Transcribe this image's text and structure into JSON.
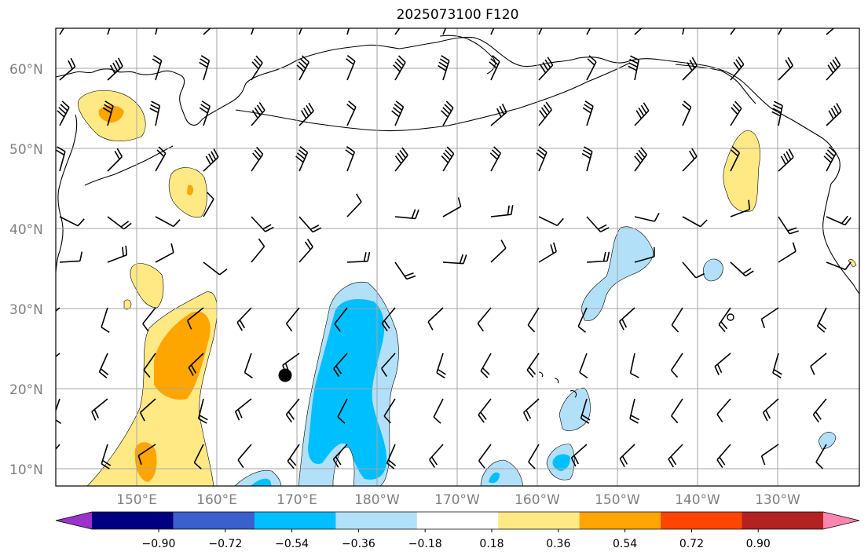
{
  "title": "2025073100 F120",
  "lat_labels": [
    "60°N",
    "50°N",
    "40°N",
    "30°N",
    "20°N",
    "10°N"
  ],
  "lon_labels": [
    "150°E",
    "160°E",
    "170°E",
    "180°W",
    "170°W",
    "160°W",
    "150°W",
    "140°W",
    "130°W"
  ],
  "colorbar": {
    "colors": [
      "#9933cc",
      "#000080",
      "#3b5fcd",
      "#00bfff",
      "#b2e0f8",
      "#ffffff",
      "#ffe985",
      "#ffa500",
      "#ff4500",
      "#b22222",
      "#ff85b0"
    ],
    "tick_labels": [
      "−0.90",
      "−0.72",
      "−0.54",
      "−0.36",
      "−0.18",
      "0.18",
      "0.36",
      "0.54",
      "0.72",
      "0.90"
    ]
  },
  "legend_colors": {
    "positive_light": "#ffe985",
    "positive_mid": "#ffa500",
    "negative_light": "#b2e0f8",
    "negative_mid": "#00bfff"
  },
  "marker": "storm-center-dot"
}
